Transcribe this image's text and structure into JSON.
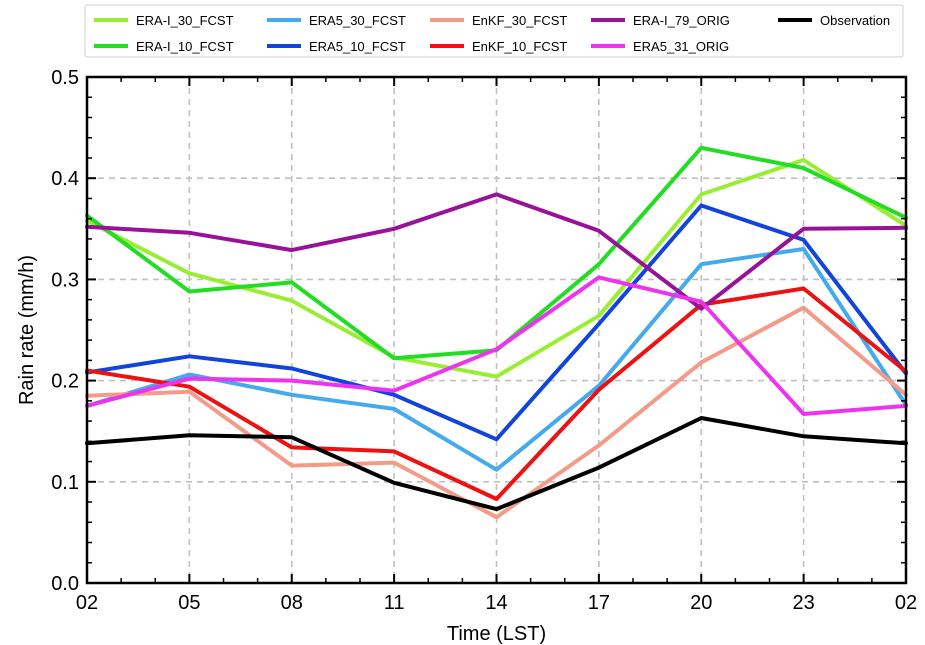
{
  "chart_data": {
    "type": "line",
    "title": "",
    "xlabel": "Time (LST)",
    "ylabel": "Rain rate (mm/h)",
    "categories": [
      "02",
      "05",
      "08",
      "11",
      "14",
      "17",
      "20",
      "23",
      "02"
    ],
    "ylim": [
      0.0,
      0.5
    ],
    "yticks": [
      "0.0",
      "0.1",
      "0.2",
      "0.3",
      "0.4",
      "0.5"
    ],
    "grid": true,
    "legend_position": "top",
    "series": [
      {
        "name": "ERA-I_30_FCST",
        "color": "#99ee33",
        "values": [
          0.358,
          0.306,
          0.279,
          0.223,
          0.204,
          0.264,
          0.384,
          0.418,
          0.353
        ]
      },
      {
        "name": "ERA-I_10_FCST",
        "color": "#22dd22",
        "values": [
          0.363,
          0.288,
          0.297,
          0.222,
          0.23,
          0.315,
          0.43,
          0.41,
          0.361
        ]
      },
      {
        "name": "ERA5_30_FCST",
        "color": "#44aaee",
        "values": [
          0.175,
          0.206,
          0.186,
          0.172,
          0.112,
          0.195,
          0.315,
          0.33,
          0.176
        ]
      },
      {
        "name": "ERA5_10_FCST",
        "color": "#1144dd",
        "values": [
          0.208,
          0.224,
          0.212,
          0.186,
          0.142,
          0.256,
          0.373,
          0.339,
          0.207
        ]
      },
      {
        "name": "EnKF_30_FCST",
        "color": "#f49a88",
        "values": [
          0.185,
          0.189,
          0.116,
          0.119,
          0.065,
          0.136,
          0.218,
          0.272,
          0.186
        ]
      },
      {
        "name": "EnKF_10_FCST",
        "color": "#ee1111",
        "values": [
          0.21,
          0.194,
          0.134,
          0.13,
          0.083,
          0.191,
          0.275,
          0.291,
          0.209
        ]
      },
      {
        "name": "ERA-I_79_ORIG",
        "color": "#991199",
        "values": [
          0.352,
          0.346,
          0.329,
          0.35,
          0.384,
          0.348,
          0.271,
          0.35,
          0.351
        ]
      },
      {
        "name": "ERA5_31_ORIG",
        "color": "#ee33ee",
        "values": [
          0.175,
          0.202,
          0.2,
          0.19,
          0.231,
          0.302,
          0.278,
          0.167,
          0.175
        ]
      },
      {
        "name": "Observation",
        "color": "#000000",
        "values": [
          0.138,
          0.146,
          0.144,
          0.099,
          0.073,
          0.114,
          0.163,
          0.145,
          0.138
        ]
      }
    ]
  }
}
